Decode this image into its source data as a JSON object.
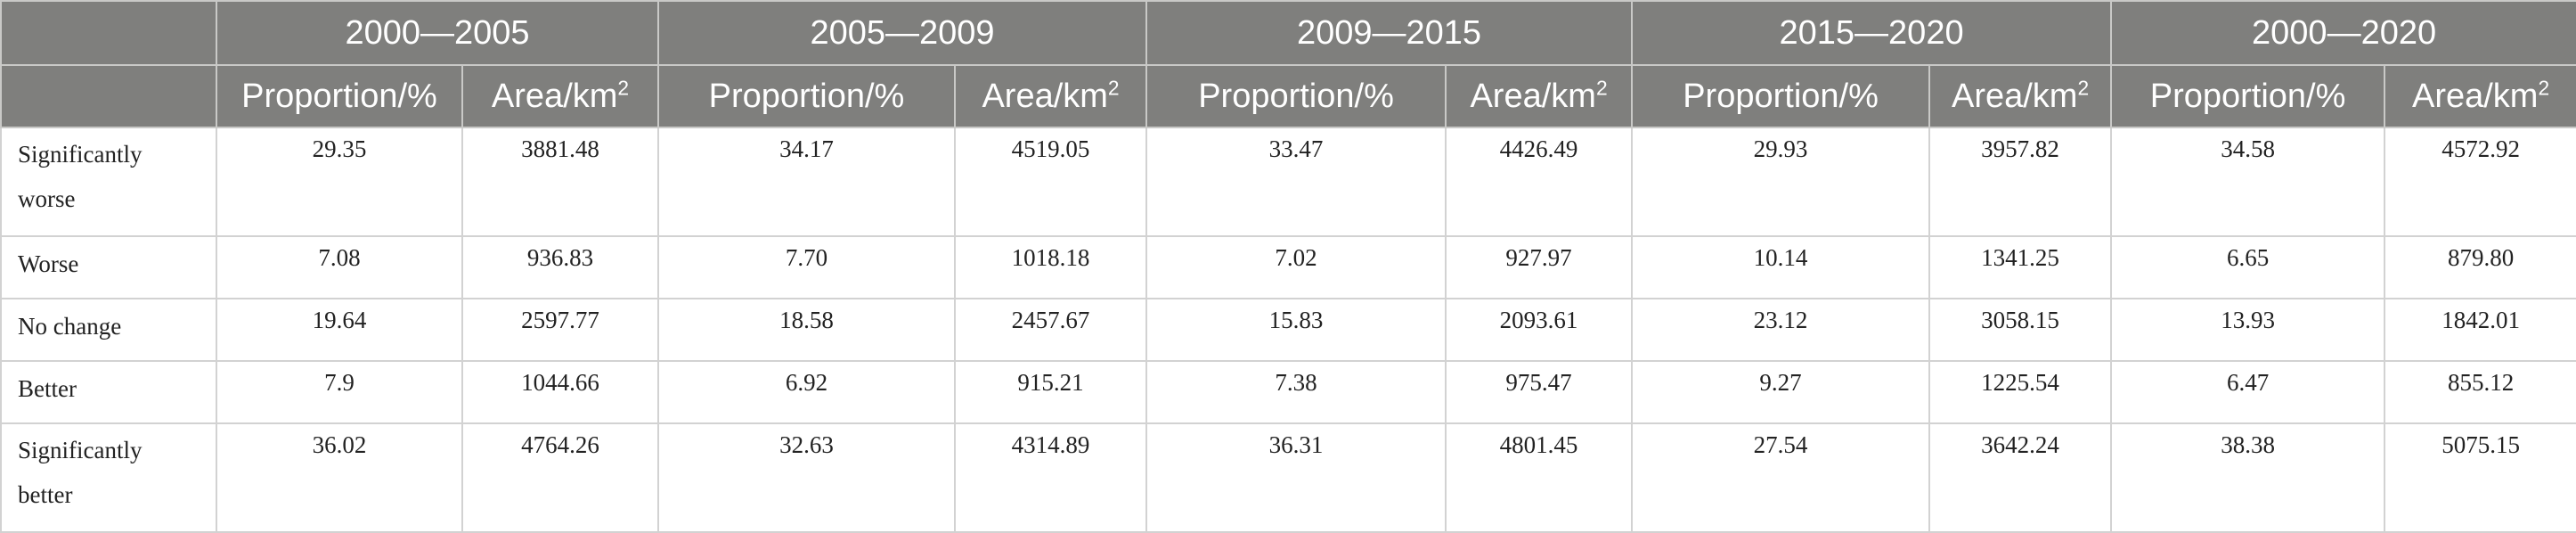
{
  "periods": [
    "2000—2005",
    "2005—2009",
    "2009—2015",
    "2015—2020",
    "2000—2020"
  ],
  "subheaders": {
    "proportion": "Proportion/%",
    "area": "Area/km",
    "area_sup": "2"
  },
  "rows": [
    {
      "label": "Significantly worse",
      "values": [
        "29.35",
        "3881.48",
        "34.17",
        "4519.05",
        "33.47",
        "4426.49",
        "29.93",
        "3957.82",
        "34.58",
        "4572.92"
      ]
    },
    {
      "label": "Worse",
      "values": [
        "7.08",
        "936.83",
        "7.70",
        "1018.18",
        "7.02",
        "927.97",
        "10.14",
        "1341.25",
        "6.65",
        "879.80"
      ]
    },
    {
      "label": "No change",
      "values": [
        "19.64",
        "2597.77",
        "18.58",
        "2457.67",
        "15.83",
        "2093.61",
        "23.12",
        "3058.15",
        "13.93",
        "1842.01"
      ]
    },
    {
      "label": "Better",
      "values": [
        "7.9",
        "1044.66",
        "6.92",
        "915.21",
        "7.38",
        "975.47",
        "9.27",
        "1225.54",
        "6.47",
        "855.12"
      ]
    },
    {
      "label": "Significantly better",
      "values": [
        "36.02",
        "4764.26",
        "32.63",
        "4314.89",
        "36.31",
        "4801.45",
        "27.54",
        "3642.24",
        "38.38",
        "5075.15"
      ]
    }
  ]
}
